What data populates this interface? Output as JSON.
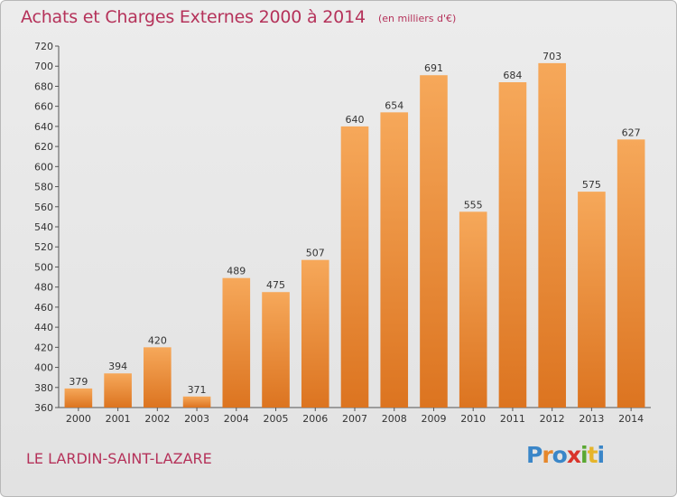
{
  "title": "Achats et Charges Externes 2000 à 2014",
  "subtitle": "(en milliers d'€)",
  "commune": "LE LARDIN-SAINT-LAZARE",
  "logo": {
    "letters": [
      "P",
      "r",
      "o",
      "x",
      "i",
      "t",
      "i"
    ],
    "colors": [
      "#3a86c8",
      "#e6872b",
      "#3a86c8",
      "#d9342b",
      "#5aa832",
      "#e6b52b",
      "#3a86c8"
    ]
  },
  "colors": {
    "bar_light": "#f6a85a",
    "bar_dark": "#dc7420",
    "text_accent": "#b5325a"
  },
  "chart_data": {
    "type": "bar",
    "title": "Achats et Charges Externes 2000 à 2014",
    "subtitle": "(en milliers d'€)",
    "xlabel": "",
    "ylabel": "",
    "categories": [
      "2000",
      "2001",
      "2002",
      "2003",
      "2004",
      "2005",
      "2006",
      "2007",
      "2008",
      "2009",
      "2010",
      "2011",
      "2012",
      "2013",
      "2014"
    ],
    "values": [
      379,
      394,
      420,
      371,
      489,
      475,
      507,
      640,
      654,
      691,
      555,
      684,
      703,
      575,
      627
    ],
    "ylim": [
      360,
      720
    ],
    "yticks": [
      360,
      380,
      400,
      420,
      440,
      460,
      480,
      500,
      520,
      540,
      560,
      580,
      600,
      620,
      640,
      660,
      680,
      700,
      720
    ],
    "grid": false,
    "legend": "none"
  }
}
